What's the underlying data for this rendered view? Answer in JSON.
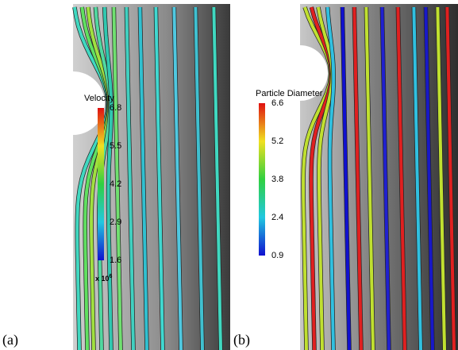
{
  "panels": [
    {
      "label": "(a)",
      "colorbar": {
        "title": "Velocity",
        "ticks": [
          6.8,
          5.5,
          4.2,
          2.9,
          1.6
        ],
        "multiplier": {
          "base": "x 10",
          "exponent": "6"
        }
      }
    },
    {
      "label": "(b)",
      "colorbar": {
        "title": "Particle Diameter",
        "ticks": [
          6.6,
          5.2,
          3.8,
          2.4,
          0.9
        ]
      }
    }
  ]
}
